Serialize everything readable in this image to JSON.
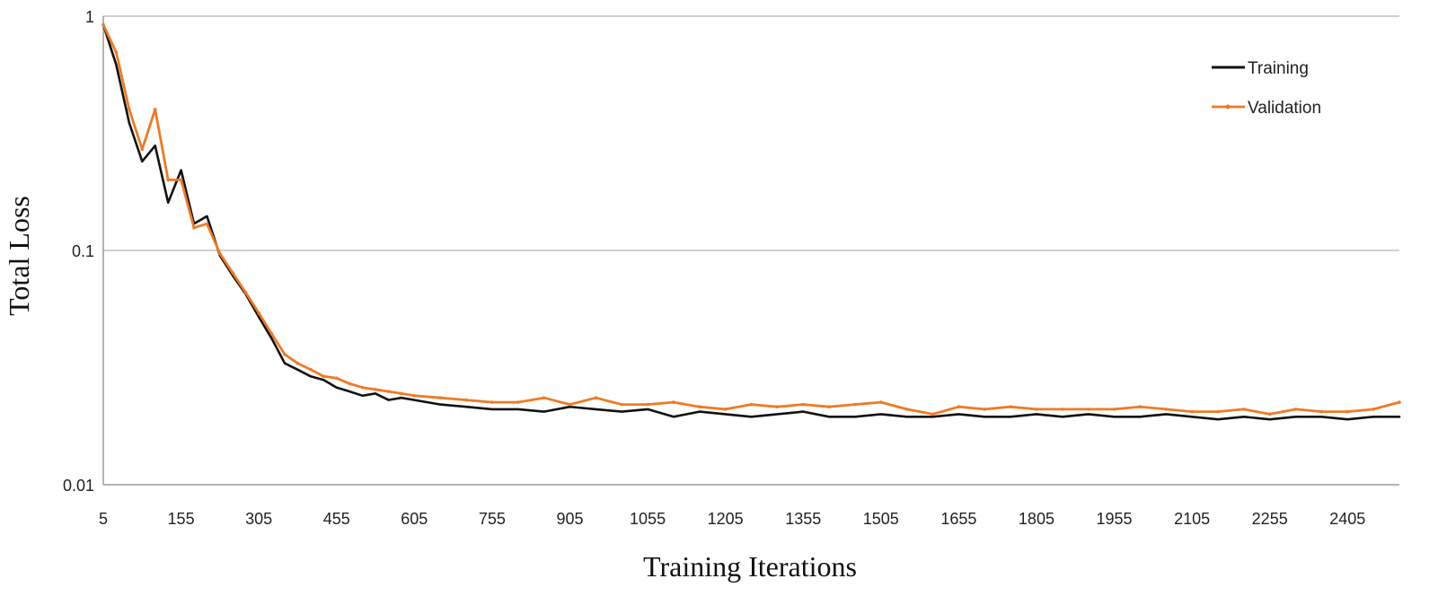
{
  "chart_data": {
    "type": "line",
    "title": "",
    "xlabel": "Training Iterations",
    "ylabel": "Total Loss",
    "y_scale": "log",
    "ylim": [
      0.01,
      1
    ],
    "xlim": [
      5,
      2505
    ],
    "y_ticks": [
      {
        "value": 1,
        "label": "1"
      },
      {
        "value": 0.1,
        "label": "0.1"
      },
      {
        "value": 0.01,
        "label": "0.01"
      }
    ],
    "x_ticks": [
      5,
      155,
      305,
      455,
      605,
      755,
      905,
      1055,
      1205,
      1355,
      1505,
      1655,
      1805,
      1955,
      2105,
      2255,
      2405
    ],
    "x_tick_labels": [
      "5",
      "155",
      "305",
      "455",
      "605",
      "755",
      "905",
      "1055",
      "1205",
      "1355",
      "1505",
      "1655",
      "1805",
      "1955",
      "2105",
      "2255",
      "2405"
    ],
    "grid": "horizontal major gridlines",
    "legend_position": "top-right",
    "series": [
      {
        "name": "Training",
        "color": "#111111",
        "x": [
          5,
          30,
          55,
          80,
          105,
          130,
          155,
          180,
          205,
          230,
          255,
          280,
          305,
          330,
          355,
          380,
          405,
          430,
          455,
          480,
          505,
          530,
          555,
          580,
          605,
          655,
          705,
          755,
          805,
          855,
          905,
          955,
          1005,
          1055,
          1105,
          1155,
          1205,
          1255,
          1305,
          1355,
          1405,
          1455,
          1505,
          1555,
          1605,
          1655,
          1705,
          1755,
          1805,
          1855,
          1905,
          1955,
          2005,
          2055,
          2105,
          2155,
          2205,
          2255,
          2305,
          2355,
          2405,
          2455,
          2505
        ],
        "y": [
          0.92,
          0.62,
          0.35,
          0.24,
          0.28,
          0.16,
          0.22,
          0.13,
          0.14,
          0.095,
          0.078,
          0.065,
          0.052,
          0.042,
          0.033,
          0.031,
          0.029,
          0.028,
          0.026,
          0.025,
          0.024,
          0.0245,
          0.023,
          0.0235,
          0.023,
          0.022,
          0.0215,
          0.021,
          0.021,
          0.0205,
          0.0215,
          0.021,
          0.0205,
          0.021,
          0.0195,
          0.0205,
          0.02,
          0.0195,
          0.02,
          0.0205,
          0.0195,
          0.0195,
          0.02,
          0.0195,
          0.0195,
          0.02,
          0.0195,
          0.0195,
          0.02,
          0.0195,
          0.02,
          0.0195,
          0.0195,
          0.02,
          0.0195,
          0.019,
          0.0195,
          0.019,
          0.0195,
          0.0195,
          0.019,
          0.0195,
          0.0195
        ]
      },
      {
        "name": "Validation",
        "color": "#f07a25",
        "x": [
          5,
          30,
          55,
          80,
          105,
          130,
          155,
          180,
          205,
          230,
          255,
          280,
          305,
          330,
          355,
          380,
          405,
          430,
          455,
          480,
          505,
          530,
          555,
          580,
          605,
          655,
          705,
          755,
          805,
          855,
          905,
          955,
          1005,
          1055,
          1105,
          1155,
          1205,
          1255,
          1305,
          1355,
          1405,
          1455,
          1505,
          1555,
          1605,
          1655,
          1705,
          1755,
          1805,
          1855,
          1905,
          1955,
          2005,
          2055,
          2105,
          2155,
          2205,
          2255,
          2305,
          2355,
          2405,
          2455,
          2505
        ],
        "y": [
          0.92,
          0.7,
          0.4,
          0.27,
          0.4,
          0.2,
          0.2,
          0.125,
          0.13,
          0.097,
          0.08,
          0.066,
          0.054,
          0.044,
          0.036,
          0.033,
          0.031,
          0.029,
          0.0285,
          0.027,
          0.026,
          0.0255,
          0.025,
          0.0245,
          0.024,
          0.0235,
          0.023,
          0.0225,
          0.0225,
          0.0235,
          0.022,
          0.0235,
          0.022,
          0.022,
          0.0225,
          0.0215,
          0.021,
          0.022,
          0.0215,
          0.022,
          0.0215,
          0.022,
          0.0225,
          0.021,
          0.02,
          0.0215,
          0.021,
          0.0215,
          0.021,
          0.021,
          0.021,
          0.021,
          0.0215,
          0.021,
          0.0205,
          0.0205,
          0.021,
          0.02,
          0.021,
          0.0205,
          0.0205,
          0.021,
          0.0225
        ]
      }
    ]
  }
}
